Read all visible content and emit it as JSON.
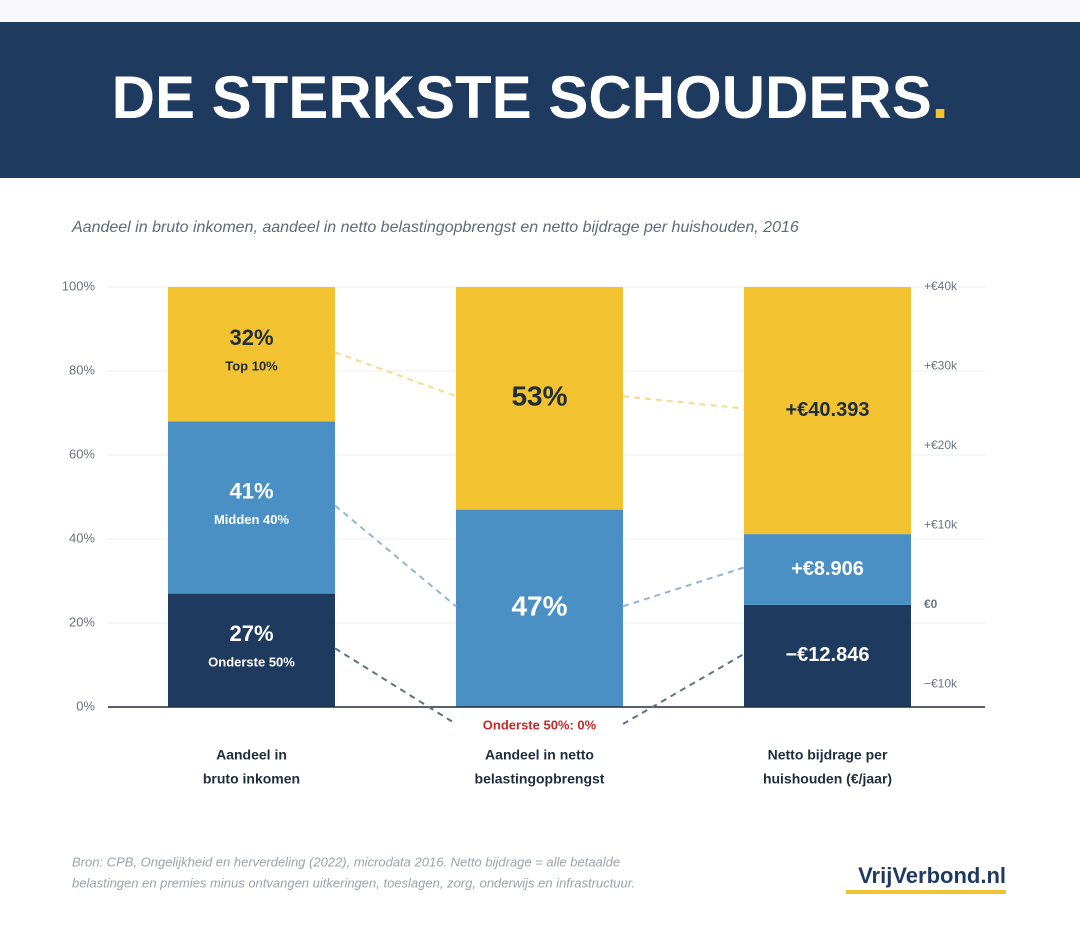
{
  "chart_data": {
    "type": "bar",
    "stacked": true,
    "title": "DE STERKSTE SCHOUDERS",
    "title_dot": ".",
    "subtitle": "Aandeel in bruto inkomen, aandeel in netto belastingopbrengst en netto bijdrage per huishouden, 2016",
    "categories": [
      [
        "Aandeel in",
        "bruto inkomen"
      ],
      [
        "Aandeel in netto",
        "belastingopbrengst"
      ],
      [
        "Netto bijdrage per",
        "huishouden (€/jaar)"
      ]
    ],
    "category_axis": [
      "y",
      "y",
      "y2"
    ],
    "series": [
      {
        "name": "Onderste 50%",
        "color": "#1f3a5f",
        "values": [
          27,
          0,
          -12846
        ],
        "value_labels": [
          "27%",
          null,
          "−€12.846"
        ]
      },
      {
        "name": "Midden 40%",
        "color": "#4a90c4",
        "values": [
          41,
          47,
          8906
        ],
        "value_labels": [
          "41%",
          "47%",
          "+€8.906"
        ]
      },
      {
        "name": "Top 10%",
        "color": "#f2c230",
        "values": [
          32,
          53,
          40393
        ],
        "value_labels": [
          "32%",
          "53%",
          "+€40.393"
        ]
      }
    ],
    "annotation": "Onderste 50%: 0%",
    "ylim": [
      0,
      100
    ],
    "yticks": [
      {
        "value": 0,
        "label": "0%"
      },
      {
        "value": 20,
        "label": "20%"
      },
      {
        "value": 40,
        "label": "40%"
      },
      {
        "value": 60,
        "label": "60%"
      },
      {
        "value": 80,
        "label": "80%"
      },
      {
        "value": 100,
        "label": "100%"
      }
    ],
    "y2lim": [
      -12846,
      40000
    ],
    "y2ticks": [
      {
        "value": -10000,
        "label": "−€10k"
      },
      {
        "value": 0,
        "label": "€0"
      },
      {
        "value": 10000,
        "label": "+€10k"
      },
      {
        "value": 20000,
        "label": "+€20k"
      },
      {
        "value": 30000,
        "label": "+€30k"
      },
      {
        "value": 40000,
        "label": "+€40k"
      }
    ],
    "grid": true,
    "source": [
      "Bron: CPB, Ongelijkheid en herverdeling (2022), microdata 2016. Netto bijdrage = alle betaalde",
      "belastingen en premies minus ontvangen uitkeringen, toeslagen, zorg, onderwijs en infrastructuur."
    ],
    "brand": "VrijVerbond.nl"
  }
}
